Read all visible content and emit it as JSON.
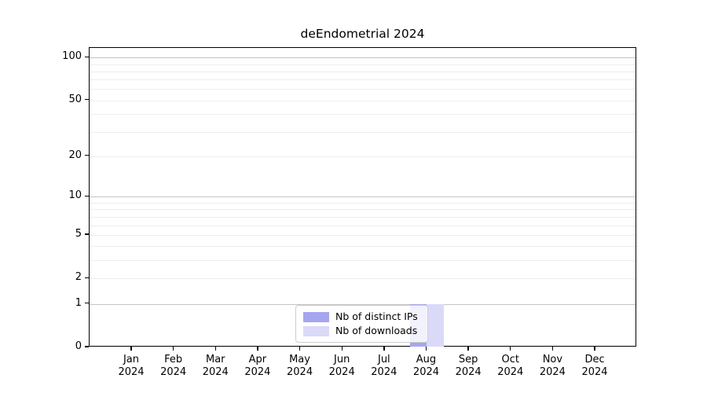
{
  "chart_data": {
    "type": "bar",
    "title": "deEndometrial 2024",
    "x_months": [
      "Jan",
      "Feb",
      "Mar",
      "Apr",
      "May",
      "Jun",
      "Jul",
      "Aug",
      "Sep",
      "Oct",
      "Nov",
      "Dec"
    ],
    "x_year": "2024",
    "series": [
      {
        "name": "Nb of distinct IPs",
        "color": "#a5a6ef",
        "values": [
          0,
          0,
          0,
          0,
          0,
          0,
          0,
          1,
          0,
          0,
          0,
          0
        ]
      },
      {
        "name": "Nb of downloads",
        "color": "#dadaf8",
        "values": [
          0,
          0,
          0,
          0,
          0,
          0,
          0,
          1,
          0,
          0,
          0,
          0
        ]
      }
    ],
    "yscale": "log10(1+x)",
    "ytick_values": [
      0,
      1,
      2,
      5,
      10,
      20,
      50,
      100
    ],
    "major_grid_values": [
      1,
      10,
      100
    ],
    "minor_grid_values": [
      2,
      3,
      4,
      5,
      6,
      7,
      8,
      9,
      20,
      30,
      40,
      50,
      60,
      70,
      80,
      90
    ],
    "ylim": [
      0,
      117
    ],
    "grid": true,
    "legend_position": "bottom-center"
  },
  "colors": {
    "major_grid": "#c4c4c4",
    "minor_grid": "#eeeeee",
    "axis": "#000000",
    "background": "#ffffff",
    "legend_border": "#cccccc",
    "distinct_ips": "#a5a6ef",
    "downloads": "#dadaf8"
  }
}
